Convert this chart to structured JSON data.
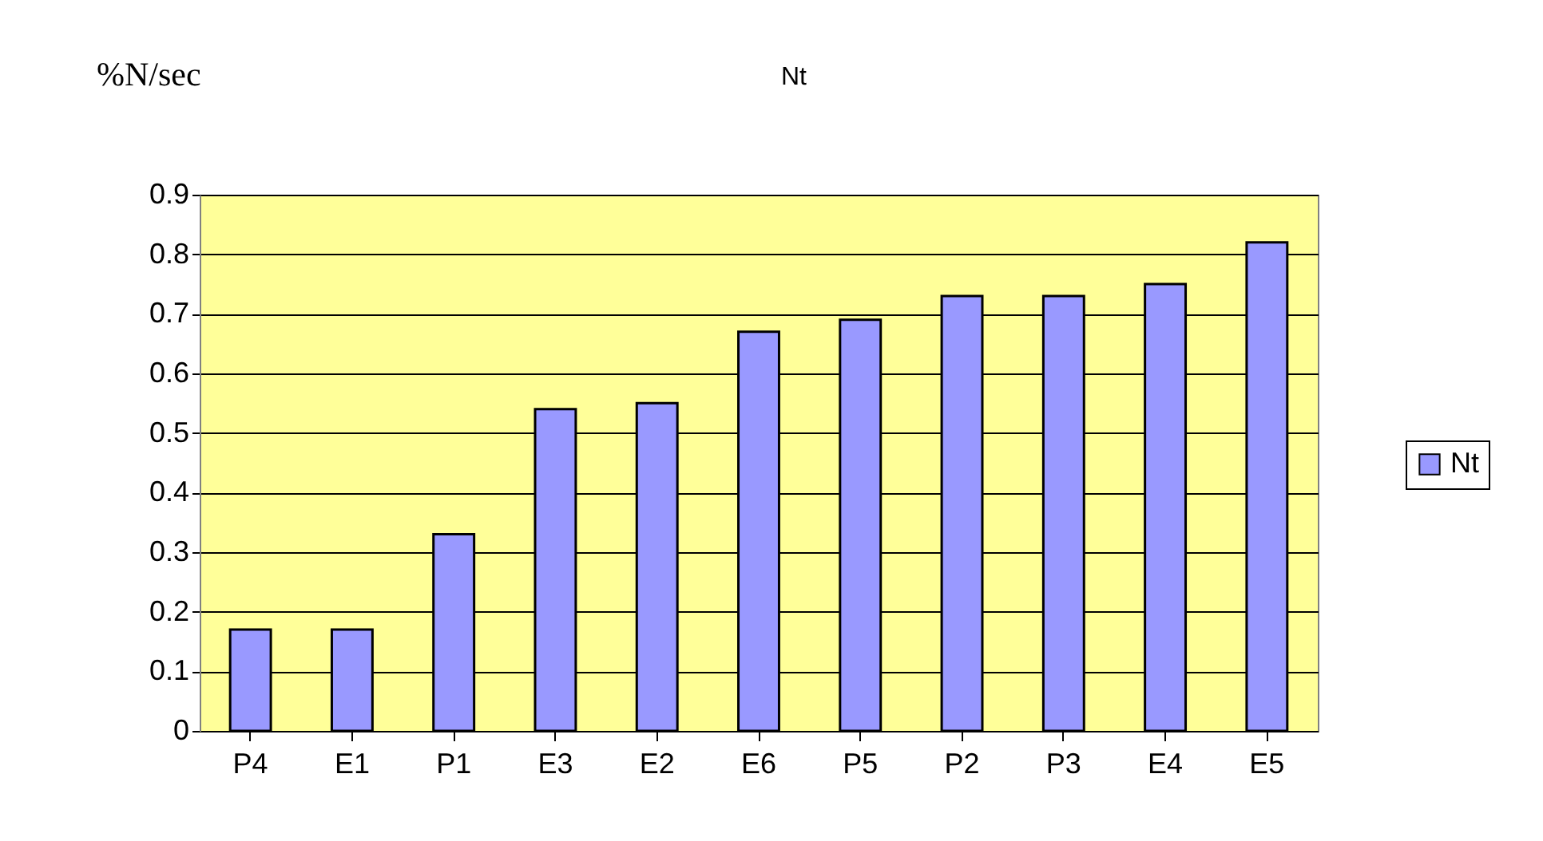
{
  "chart_data": {
    "type": "bar",
    "title": "Nt",
    "ylabel": "%N/sec",
    "categories": [
      "P4",
      "E1",
      "P1",
      "E3",
      "E2",
      "E6",
      "P5",
      "P2",
      "P3",
      "E4",
      "E5"
    ],
    "series": [
      {
        "name": "Nt",
        "color": "#9999ff",
        "values": [
          0.17,
          0.17,
          0.33,
          0.54,
          0.55,
          0.67,
          0.69,
          0.73,
          0.73,
          0.75,
          0.82
        ]
      }
    ],
    "ylim": [
      0,
      0.9
    ],
    "yticks": [
      0,
      0.1,
      0.2,
      0.3,
      0.4,
      0.5,
      0.6,
      0.7,
      0.8,
      0.9
    ],
    "grid": "y",
    "legend": "right"
  }
}
